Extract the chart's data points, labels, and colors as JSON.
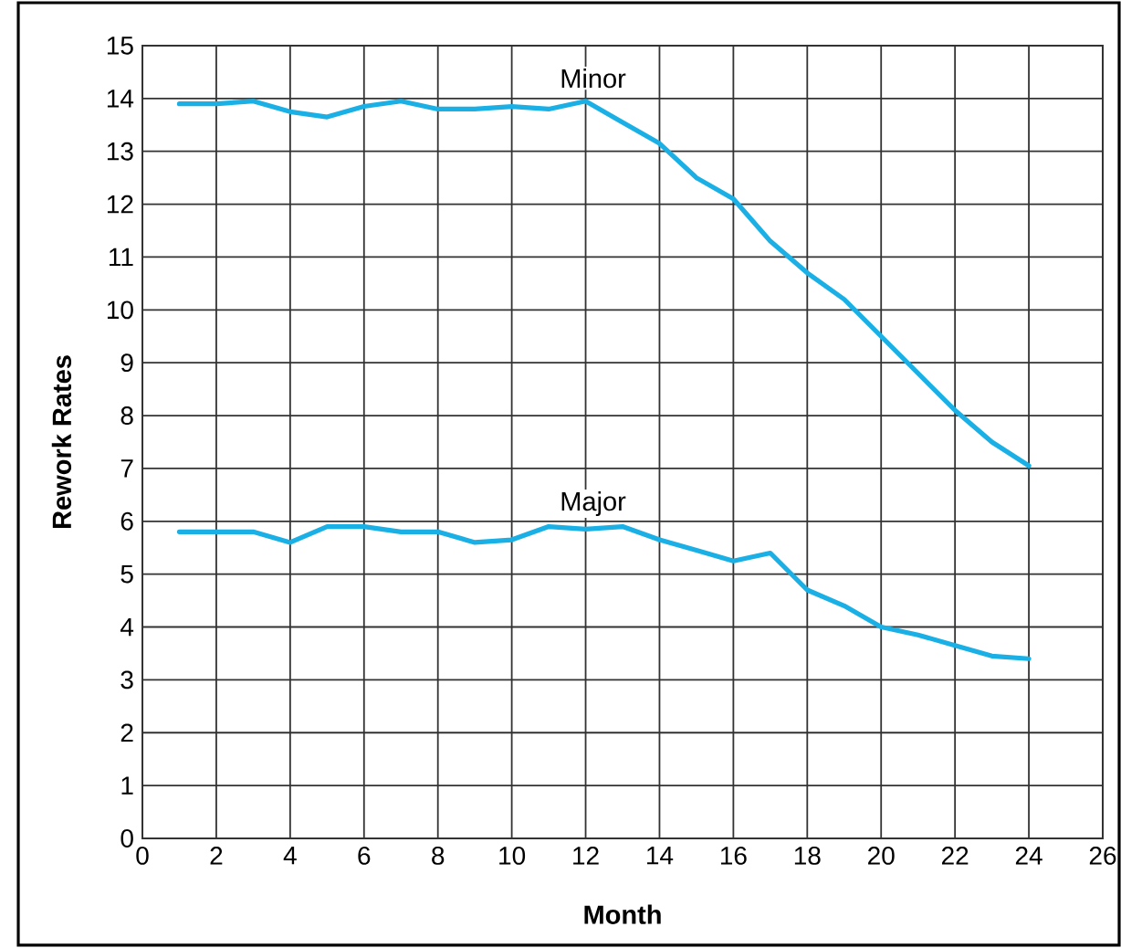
{
  "chart_data": {
    "type": "line",
    "xlabel": "Month",
    "ylabel": "Rework Rates",
    "x": [
      1,
      2,
      3,
      4,
      5,
      6,
      7,
      8,
      9,
      10,
      11,
      12,
      13,
      14,
      15,
      16,
      17,
      18,
      19,
      20,
      21,
      22,
      23,
      24
    ],
    "series": [
      {
        "name": "Minor",
        "color": "#1ab0e6",
        "values": [
          13.9,
          13.9,
          13.95,
          13.75,
          13.65,
          13.85,
          13.95,
          13.8,
          13.8,
          13.85,
          13.8,
          13.95,
          13.55,
          13.15,
          12.5,
          12.1,
          11.3,
          10.7,
          10.2,
          9.5,
          8.8,
          8.1,
          7.5,
          7.05
        ]
      },
      {
        "name": "Major",
        "color": "#1ab0e6",
        "values": [
          5.8,
          5.8,
          5.8,
          5.6,
          5.9,
          5.9,
          5.8,
          5.8,
          5.6,
          5.65,
          5.9,
          5.85,
          5.9,
          5.65,
          5.45,
          5.25,
          5.4,
          4.7,
          4.4,
          4.0,
          3.85,
          3.65,
          3.45,
          3.4
        ]
      }
    ],
    "xlim": [
      0,
      26
    ],
    "ylim": [
      0,
      15
    ],
    "xticks": [
      0,
      2,
      4,
      6,
      8,
      10,
      12,
      14,
      16,
      18,
      20,
      22,
      24,
      26
    ],
    "yticks": [
      0,
      1,
      2,
      3,
      4,
      5,
      6,
      7,
      8,
      9,
      10,
      11,
      12,
      13,
      14,
      15
    ],
    "grid": true,
    "marker": "none",
    "line_style": "solid"
  }
}
